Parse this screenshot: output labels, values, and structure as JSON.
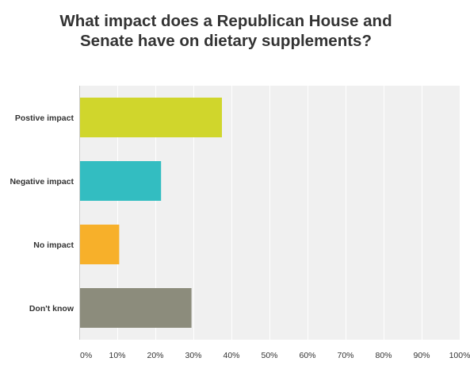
{
  "chart_data": {
    "type": "bar",
    "orientation": "horizontal",
    "title": "What impact does a Republican House and Senate have on dietary supplements?",
    "title_lines": [
      "What impact does a Republican House and",
      "Senate have on dietary supplements?"
    ],
    "categories": [
      "Postive impact",
      "Negative impact",
      "No impact",
      "Don't know"
    ],
    "values": [
      37.5,
      21.5,
      10.5,
      29.5
    ],
    "unit": "%",
    "colors": [
      "#d0d62c",
      "#33bdc1",
      "#f7b02a",
      "#8c8c7c"
    ],
    "xlim": [
      0,
      100
    ],
    "x_ticks": [
      0,
      10,
      20,
      30,
      40,
      50,
      60,
      70,
      80,
      90,
      100
    ],
    "x_tick_labels": [
      "0%",
      "10%",
      "20%",
      "30%",
      "40%",
      "50%",
      "60%",
      "70%",
      "80%",
      "90%",
      "100%"
    ],
    "grid": true,
    "plot_background": "#f0f0f0",
    "grid_color": "#ffffff"
  }
}
